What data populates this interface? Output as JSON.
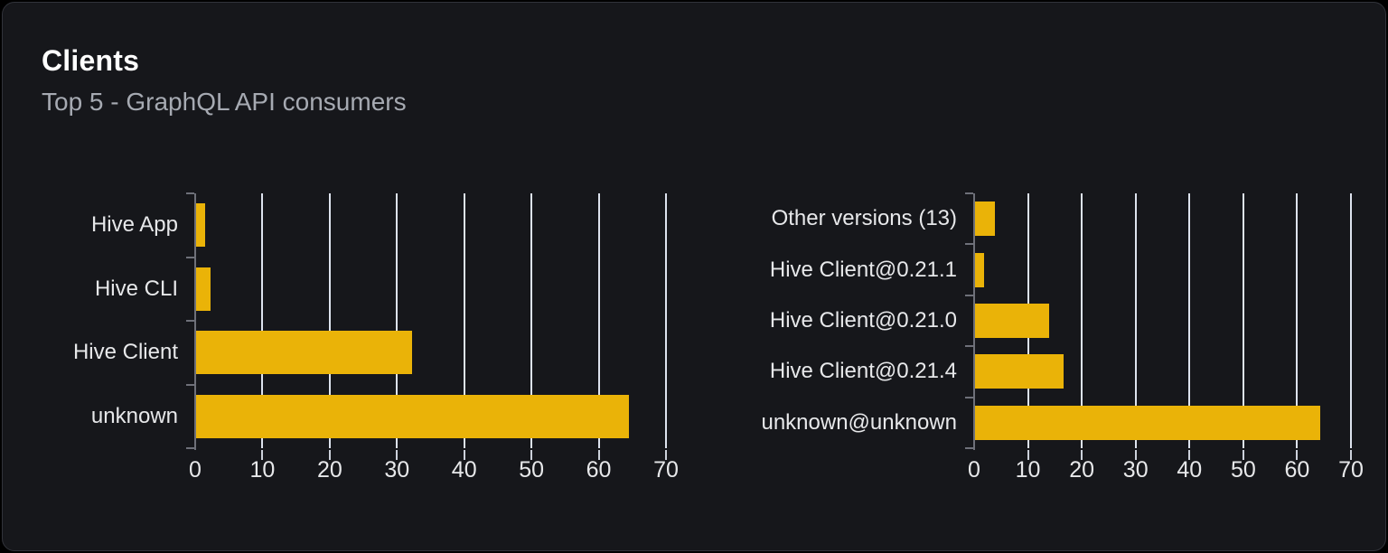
{
  "header": {
    "title": "Clients",
    "subtitle": "Top 5 - GraphQL API consumers"
  },
  "colors": {
    "bar": "#eab308",
    "gridline": "#dde3ee",
    "axis_line": "#6e7079",
    "x_tick": "#ccd1db",
    "label_text": "#e7e8ea",
    "title_text": "#ffffff",
    "subtitle_text": "#a6aab2",
    "card_background": "#16171b",
    "card_border": "#31333a",
    "page_background": "#000000"
  },
  "chart_data": [
    {
      "type": "bar",
      "orientation": "horizontal",
      "title": "",
      "xlabel": "",
      "ylabel": "",
      "categories": [
        "Hive App",
        "Hive CLI",
        "Hive Client",
        "unknown"
      ],
      "values": [
        1.4,
        2.1,
        32.1,
        64.3
      ],
      "x_ticks": [
        "0",
        "10",
        "20",
        "30",
        "40",
        "50",
        "60",
        "70"
      ],
      "xlim": [
        0,
        70
      ],
      "grid": true,
      "legend": false
    },
    {
      "type": "bar",
      "orientation": "horizontal",
      "title": "",
      "xlabel": "",
      "ylabel": "",
      "categories": [
        "Other versions (13)",
        "Hive Client@0.21.1",
        "Hive Client@0.21.0",
        "Hive Client@0.21.4",
        "unknown@unknown"
      ],
      "values": [
        3.7,
        1.7,
        13.7,
        16.4,
        64.2
      ],
      "x_ticks": [
        "0",
        "10",
        "20",
        "30",
        "40",
        "50",
        "60",
        "70"
      ],
      "xlim": [
        0,
        70
      ],
      "grid": true,
      "legend": false
    }
  ]
}
